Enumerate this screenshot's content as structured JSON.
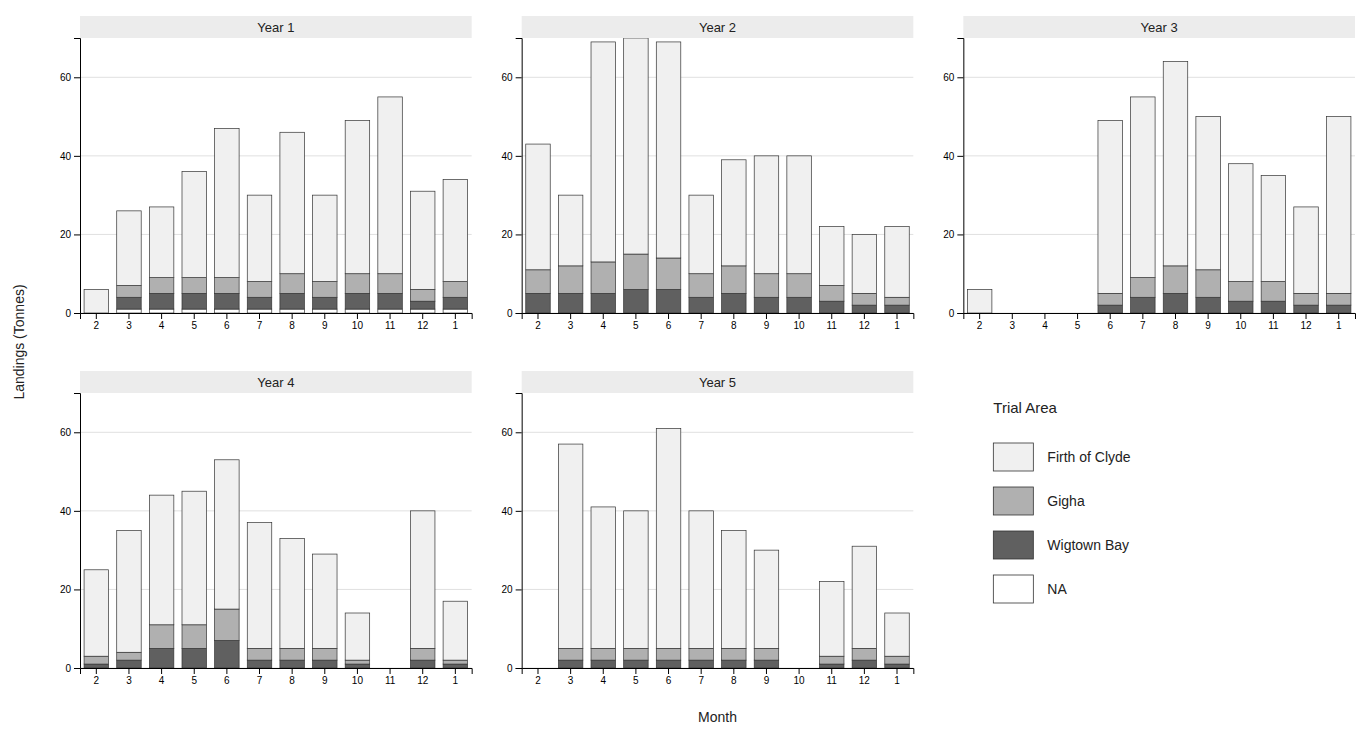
{
  "chart_data": [
    {
      "type": "bar",
      "title": "Year 1",
      "stacked": true,
      "grid": true,
      "xlabel": "Month",
      "ylabel": "Landings (Tonnes)",
      "legend_title": "Trial Area",
      "categories": [
        "2",
        "3",
        "4",
        "5",
        "6",
        "7",
        "8",
        "9",
        "10",
        "11",
        "12",
        "1"
      ],
      "ylim": [
        0,
        70
      ],
      "yticks": [
        0,
        20,
        40,
        60
      ],
      "series": [
        {
          "name": "NA",
          "color": "#ffffff",
          "values": [
            0,
            1,
            1,
            1,
            1,
            1,
            1,
            1,
            1,
            1,
            1,
            1
          ]
        },
        {
          "name": "Wigtown Bay",
          "color": "#606060",
          "values": [
            0,
            3,
            4,
            4,
            4,
            3,
            4,
            3,
            4,
            4,
            2,
            3
          ]
        },
        {
          "name": "Gigha",
          "color": "#b0b0b0",
          "values": [
            0,
            3,
            4,
            4,
            4,
            4,
            5,
            4,
            5,
            5,
            3,
            4
          ]
        },
        {
          "name": "Firth of Clyde",
          "color": "#f0f0f0",
          "values": [
            6,
            19,
            18,
            27,
            38,
            22,
            36,
            22,
            39,
            45,
            25,
            26
          ]
        }
      ]
    },
    {
      "type": "bar",
      "title": "Year 2",
      "stacked": true,
      "grid": true,
      "categories": [
        "2",
        "3",
        "4",
        "5",
        "6",
        "7",
        "8",
        "9",
        "10",
        "11",
        "12",
        "1"
      ],
      "ylim": [
        0,
        70
      ],
      "yticks": [
        0,
        20,
        40,
        60
      ],
      "series": [
        {
          "name": "NA",
          "color": "#ffffff",
          "values": [
            0,
            0,
            0,
            0,
            0,
            0,
            0,
            0,
            0,
            0,
            0,
            0
          ]
        },
        {
          "name": "Wigtown Bay",
          "color": "#606060",
          "values": [
            5,
            5,
            5,
            6,
            6,
            4,
            5,
            4,
            4,
            3,
            2,
            2
          ]
        },
        {
          "name": "Gigha",
          "color": "#b0b0b0",
          "values": [
            6,
            7,
            8,
            9,
            8,
            6,
            7,
            6,
            6,
            4,
            3,
            2
          ]
        },
        {
          "name": "Firth of Clyde",
          "color": "#f0f0f0",
          "values": [
            32,
            18,
            56,
            55,
            55,
            20,
            27,
            30,
            30,
            15,
            15,
            18
          ]
        }
      ]
    },
    {
      "type": "bar",
      "title": "Year 3",
      "stacked": true,
      "grid": true,
      "categories": [
        "2",
        "3",
        "4",
        "5",
        "6",
        "7",
        "8",
        "9",
        "10",
        "11",
        "12",
        "1"
      ],
      "ylim": [
        0,
        70
      ],
      "yticks": [
        0,
        20,
        40,
        60
      ],
      "series": [
        {
          "name": "NA",
          "color": "#ffffff",
          "values": [
            0,
            0,
            0,
            0,
            0,
            0,
            0,
            0,
            0,
            0,
            0,
            0
          ]
        },
        {
          "name": "Wigtown Bay",
          "color": "#606060",
          "values": [
            0,
            0,
            0,
            0,
            2,
            4,
            5,
            4,
            3,
            3,
            2,
            2
          ]
        },
        {
          "name": "Gigha",
          "color": "#b0b0b0",
          "values": [
            0,
            0,
            0,
            0,
            3,
            5,
            7,
            7,
            5,
            5,
            3,
            3
          ]
        },
        {
          "name": "Firth of Clyde",
          "color": "#f0f0f0",
          "values": [
            6,
            0,
            0,
            0,
            44,
            46,
            52,
            39,
            30,
            27,
            22,
            45
          ]
        }
      ]
    },
    {
      "type": "bar",
      "title": "Year 4",
      "stacked": true,
      "grid": true,
      "categories": [
        "2",
        "3",
        "4",
        "5",
        "6",
        "7",
        "8",
        "9",
        "10",
        "11",
        "12",
        "1"
      ],
      "ylim": [
        0,
        70
      ],
      "yticks": [
        0,
        20,
        40,
        60
      ],
      "series": [
        {
          "name": "NA",
          "color": "#ffffff",
          "values": [
            0,
            0,
            0,
            0,
            0,
            0,
            0,
            0,
            0,
            0,
            0,
            0
          ]
        },
        {
          "name": "Wigtown Bay",
          "color": "#606060",
          "values": [
            1,
            2,
            5,
            5,
            7,
            2,
            2,
            2,
            1,
            0,
            2,
            1
          ]
        },
        {
          "name": "Gigha",
          "color": "#b0b0b0",
          "values": [
            2,
            2,
            6,
            6,
            8,
            3,
            3,
            3,
            1,
            0,
            3,
            1
          ]
        },
        {
          "name": "Firth of Clyde",
          "color": "#f0f0f0",
          "values": [
            22,
            31,
            33,
            34,
            38,
            32,
            28,
            24,
            12,
            0,
            35,
            15
          ]
        }
      ]
    },
    {
      "type": "bar",
      "title": "Year 5",
      "stacked": true,
      "grid": true,
      "categories": [
        "2",
        "3",
        "4",
        "5",
        "6",
        "7",
        "8",
        "9",
        "10",
        "11",
        "12",
        "1"
      ],
      "ylim": [
        0,
        70
      ],
      "yticks": [
        0,
        20,
        40,
        60
      ],
      "series": [
        {
          "name": "NA",
          "color": "#ffffff",
          "values": [
            0,
            0,
            0,
            0,
            0,
            0,
            0,
            0,
            0,
            0,
            0,
            0
          ]
        },
        {
          "name": "Wigtown Bay",
          "color": "#606060",
          "values": [
            0,
            2,
            2,
            2,
            2,
            2,
            2,
            2,
            0,
            1,
            2,
            1
          ]
        },
        {
          "name": "Gigha",
          "color": "#b0b0b0",
          "values": [
            0,
            3,
            3,
            3,
            3,
            3,
            3,
            3,
            0,
            2,
            3,
            2
          ]
        },
        {
          "name": "Firth of Clyde",
          "color": "#f0f0f0",
          "values": [
            0,
            52,
            36,
            35,
            56,
            35,
            30,
            25,
            0,
            19,
            26,
            11
          ]
        }
      ]
    }
  ]
}
